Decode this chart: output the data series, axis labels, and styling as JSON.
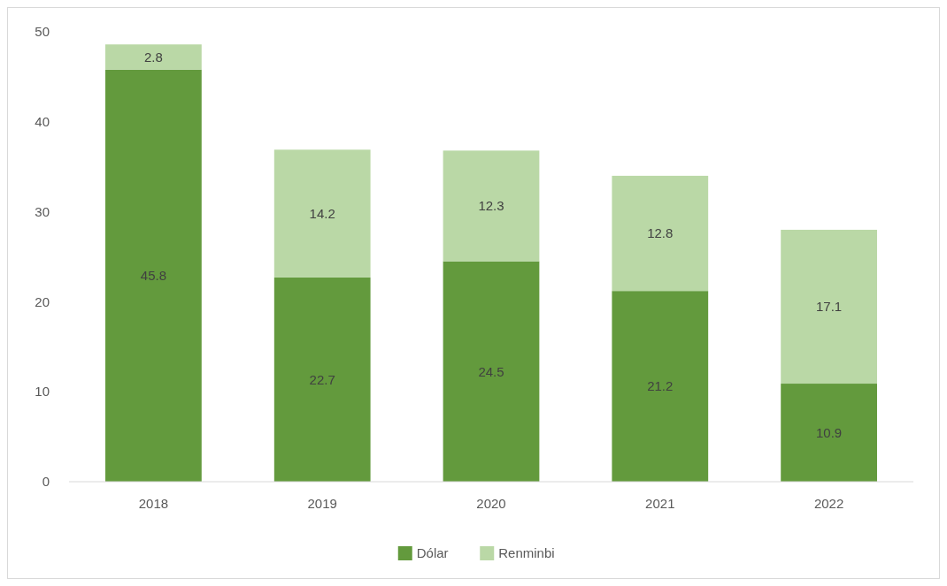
{
  "chart_data": {
    "type": "bar",
    "stacked": true,
    "categories": [
      "2018",
      "2019",
      "2020",
      "2021",
      "2022"
    ],
    "series": [
      {
        "name": "Dólar",
        "color": "#639a3d",
        "values": [
          45.8,
          22.7,
          24.5,
          21.2,
          10.9
        ]
      },
      {
        "name": "Renminbi",
        "color": "#bad8a6",
        "values": [
          2.8,
          14.2,
          12.3,
          12.8,
          17.1
        ]
      }
    ],
    "ylim": [
      0,
      50
    ],
    "yticks": [
      0,
      10,
      20,
      30,
      40,
      50
    ],
    "data_labels": true,
    "legend": "bottom",
    "grid": false
  }
}
